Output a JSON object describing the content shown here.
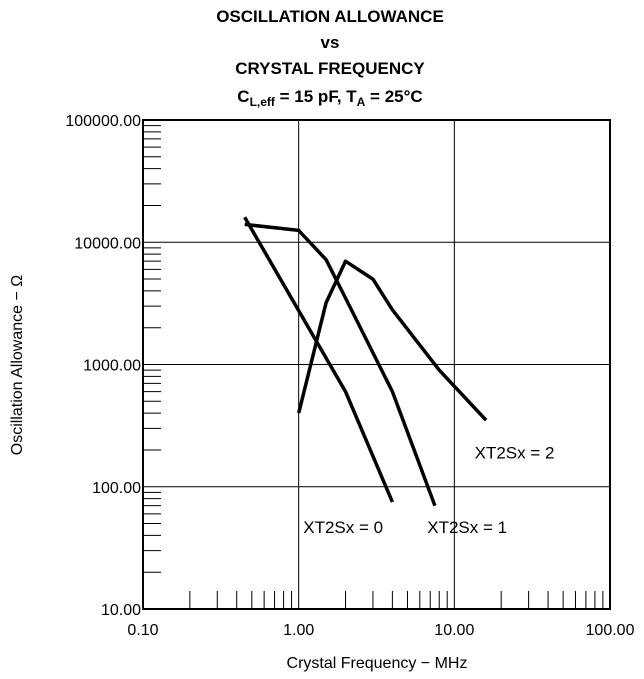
{
  "chart_data": {
    "type": "line",
    "title_lines": [
      "OSCILLATION ALLOWANCE",
      "vs",
      "CRYSTAL FREQUENCY"
    ],
    "title_line4": {
      "c": "C",
      "c_sub": "L,eff",
      "mid": " = 15 pF, T",
      "t_sub": "A",
      "end": " = 25°C"
    },
    "xlabel": "Crystal Frequency − MHz",
    "ylabel": "Oscillation Allowance − Ω",
    "x_scale": "log",
    "y_scale": "log",
    "xlim": [
      0.1,
      100
    ],
    "ylim": [
      10,
      100000
    ],
    "x_tick_labels": [
      "0.10",
      "1.00",
      "10.00",
      "100.00"
    ],
    "y_tick_labels": [
      "10.00",
      "100.00",
      "1000.00",
      "10000.00",
      "100000.00"
    ],
    "grid": true,
    "series": [
      {
        "name": "XT2Sx = 0",
        "x": [
          0.45,
          2.0,
          4.0
        ],
        "y": [
          16000,
          600,
          75
        ]
      },
      {
        "name": "XT2Sx = 1",
        "x": [
          0.45,
          1.0,
          1.5,
          2.0,
          4.0,
          7.5
        ],
        "y": [
          14000,
          12500,
          7200,
          3500,
          600,
          70
        ]
      },
      {
        "name": "XT2Sx = 2",
        "x": [
          1.0,
          1.5,
          2.0,
          3.0,
          4.0,
          8.0,
          16.0
        ],
        "y": [
          400,
          3200,
          7000,
          5000,
          2800,
          900,
          350
        ]
      }
    ]
  }
}
